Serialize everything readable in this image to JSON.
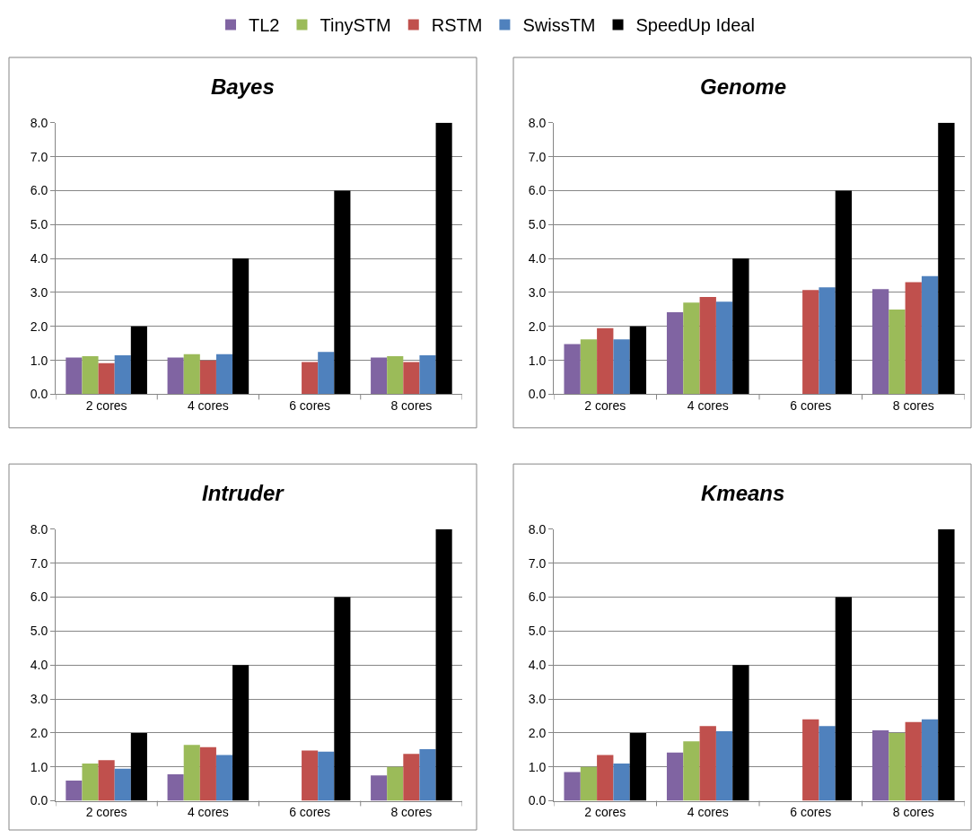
{
  "chart_data": [
    {
      "type": "bar",
      "title": "Bayes",
      "categories": [
        "2 cores",
        "4 cores",
        "6 cores",
        "8 cores"
      ],
      "legend": "top",
      "grid": "y",
      "ylim": [
        0,
        8
      ],
      "yticks": [
        {
          "value": 0,
          "label": "0.0"
        },
        {
          "value": 1,
          "label": "1.0"
        },
        {
          "value": 2,
          "label": "2.0"
        },
        {
          "value": 3,
          "label": "3.0"
        },
        {
          "value": 4,
          "label": "4.0"
        },
        {
          "value": 5,
          "label": "5.0"
        },
        {
          "value": 6,
          "label": "6.0"
        },
        {
          "value": 7,
          "label": "7.0"
        },
        {
          "value": 8,
          "label": "8.0"
        }
      ],
      "series": [
        {
          "name": "TL2",
          "color": "#8064a2",
          "values": [
            1.08,
            1.08,
            null,
            1.08
          ]
        },
        {
          "name": "TinySTM",
          "color": "#9bbb59",
          "values": [
            1.12,
            1.18,
            null,
            1.12
          ]
        },
        {
          "name": "RSTM",
          "color": "#c0504d",
          "values": [
            0.92,
            1.0,
            0.95,
            0.95
          ]
        },
        {
          "name": "SwissTM",
          "color": "#4f81bd",
          "values": [
            1.15,
            1.18,
            1.25,
            1.15
          ]
        },
        {
          "name": "SpeedUp Ideal",
          "color": "#000000",
          "values": [
            2,
            4,
            6,
            8
          ]
        }
      ]
    },
    {
      "type": "bar",
      "title": "Genome",
      "categories": [
        "2 cores",
        "4 cores",
        "6 cores",
        "8 cores"
      ],
      "grid": "y",
      "ylim": [
        0,
        8
      ],
      "yticks": [
        {
          "value": 0,
          "label": "0.0"
        },
        {
          "value": 1,
          "label": "1.0"
        },
        {
          "value": 2,
          "label": "2.0"
        },
        {
          "value": 3,
          "label": "3.0"
        },
        {
          "value": 4,
          "label": "4.0"
        },
        {
          "value": 5,
          "label": "5.0"
        },
        {
          "value": 6,
          "label": "6.0"
        },
        {
          "value": 7,
          "label": "7.0"
        },
        {
          "value": 8,
          "label": "8.0"
        }
      ],
      "series": [
        {
          "color": "#8064a2",
          "values": [
            1.48,
            2.42,
            null,
            3.1
          ]
        },
        {
          "color": "#9bbb59",
          "values": [
            1.62,
            2.7,
            null,
            2.5
          ]
        },
        {
          "color": "#c0504d",
          "values": [
            1.95,
            2.87,
            3.07,
            3.3
          ]
        },
        {
          "color": "#4f81bd",
          "values": [
            1.62,
            2.73,
            3.15,
            3.48
          ]
        },
        {
          "color": "#000000",
          "values": [
            2,
            4,
            6,
            8
          ]
        }
      ]
    },
    {
      "type": "bar",
      "title": "Intruder",
      "categories": [
        "2 cores",
        "4 cores",
        "6 cores",
        "8 cores"
      ],
      "grid": "y",
      "ylim": [
        0,
        8
      ],
      "yticks": [
        {
          "value": 0,
          "label": "0.0"
        },
        {
          "value": 1,
          "label": "1.0"
        },
        {
          "value": 2,
          "label": "2.0"
        },
        {
          "value": 3,
          "label": "3.0"
        },
        {
          "value": 4,
          "label": "4.0"
        },
        {
          "value": 5,
          "label": "5.0"
        },
        {
          "value": 6,
          "label": "6.0"
        },
        {
          "value": 7,
          "label": "7.0"
        },
        {
          "value": 8,
          "label": "8.0"
        }
      ],
      "series": [
        {
          "color": "#8064a2",
          "values": [
            0.6,
            0.78,
            null,
            0.75
          ]
        },
        {
          "color": "#9bbb59",
          "values": [
            1.1,
            1.65,
            null,
            1.0
          ]
        },
        {
          "color": "#c0504d",
          "values": [
            1.2,
            1.58,
            1.48,
            1.38
          ]
        },
        {
          "color": "#4f81bd",
          "values": [
            0.95,
            1.35,
            1.45,
            1.52
          ]
        },
        {
          "color": "#000000",
          "values": [
            2,
            4,
            6,
            8
          ]
        }
      ]
    },
    {
      "type": "bar",
      "title": "Kmeans",
      "categories": [
        "2 cores",
        "4 cores",
        "6 cores",
        "8 cores"
      ],
      "grid": "y",
      "ylim": [
        0,
        8
      ],
      "yticks": [
        {
          "value": 0,
          "label": "0.0"
        },
        {
          "value": 1,
          "label": "1.0"
        },
        {
          "value": 2,
          "label": "2.0"
        },
        {
          "value": 3,
          "label": "3.0"
        },
        {
          "value": 4,
          "label": "4.0"
        },
        {
          "value": 5,
          "label": "5.0"
        },
        {
          "value": 6,
          "label": "6.0"
        },
        {
          "value": 7,
          "label": "7.0"
        },
        {
          "value": 8,
          "label": "8.0"
        }
      ],
      "series": [
        {
          "color": "#8064a2",
          "values": [
            0.85,
            1.42,
            null,
            2.08
          ]
        },
        {
          "color": "#9bbb59",
          "values": [
            1.0,
            1.75,
            null,
            2.0
          ]
        },
        {
          "color": "#c0504d",
          "values": [
            1.35,
            2.2,
            2.4,
            2.32
          ]
        },
        {
          "color": "#4f81bd",
          "values": [
            1.1,
            2.05,
            2.2,
            2.4
          ]
        },
        {
          "color": "#000000",
          "values": [
            2,
            4,
            6,
            8
          ]
        }
      ]
    }
  ]
}
